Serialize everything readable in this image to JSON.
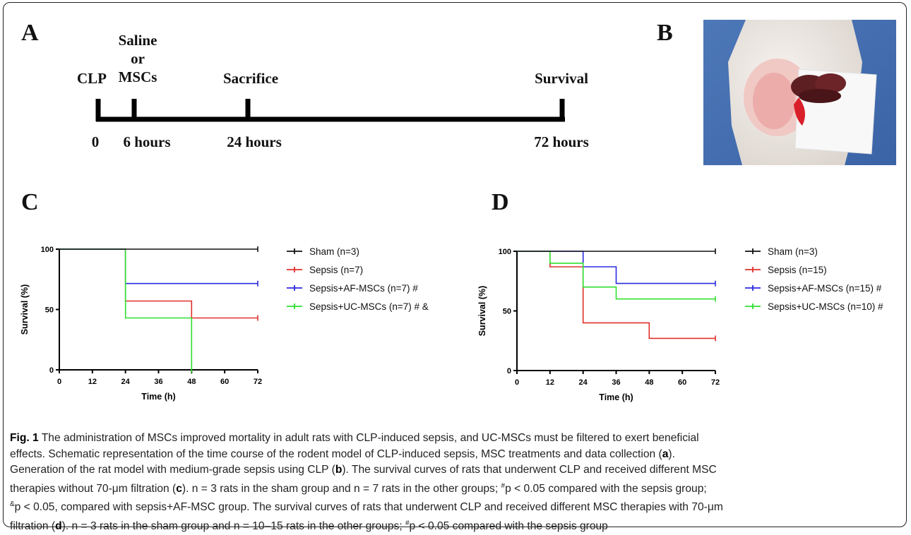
{
  "panelA": {
    "letter": "A",
    "events": [
      {
        "id": "clp",
        "label": "CLP",
        "tick": "0"
      },
      {
        "id": "treat",
        "label_lines": [
          "Saline",
          "or",
          "MSCs"
        ],
        "tick": "6 hours"
      },
      {
        "id": "sac",
        "label": "Sacrifice",
        "tick": "24 hours"
      },
      {
        "id": "surv",
        "label": "Survival",
        "tick": "72 hours"
      }
    ]
  },
  "panelB": {
    "letter": "B"
  },
  "panelC": {
    "letter": "C"
  },
  "panelD": {
    "letter": "D"
  },
  "chart_data": [
    {
      "type": "line",
      "panel": "C",
      "xlabel": "Time (h)",
      "ylabel": "Survival (%)",
      "xlim": [
        0,
        72
      ],
      "ylim": [
        0,
        100
      ],
      "xticks": [
        "0",
        "12",
        "24",
        "36",
        "48",
        "60",
        "72"
      ],
      "yticks": [
        "0",
        "50",
        "100"
      ],
      "legend_position": "right",
      "series": [
        {
          "name": "Sham (n=3)",
          "color": "#111111",
          "points": [
            [
              0,
              100
            ],
            [
              72,
              100
            ]
          ]
        },
        {
          "name": "Sepsis (n=7)",
          "color": "#e0302a",
          "points": [
            [
              0,
              100
            ],
            [
              24,
              100
            ],
            [
              24,
              57
            ],
            [
              48,
              57
            ],
            [
              48,
              43
            ],
            [
              72,
              43
            ]
          ]
        },
        {
          "name": "Sepsis+AF-MSCs (n=7)  #",
          "color": "#2a2ae0",
          "points": [
            [
              0,
              100
            ],
            [
              24,
              100
            ],
            [
              24,
              71.5
            ],
            [
              72,
              71.5
            ]
          ]
        },
        {
          "name": "Sepsis+UC-MSCs (n=7)  # &",
          "color": "#2ee02e",
          "points": [
            [
              0,
              100
            ],
            [
              24,
              100
            ],
            [
              24,
              43
            ],
            [
              48,
              43
            ],
            [
              48,
              0
            ]
          ]
        }
      ]
    },
    {
      "type": "line",
      "panel": "D",
      "xlabel": "Time (h)",
      "ylabel": "Survival (%)",
      "xlim": [
        0,
        72
      ],
      "ylim": [
        0,
        100
      ],
      "xticks": [
        "0",
        "12",
        "24",
        "36",
        "48",
        "60",
        "72"
      ],
      "yticks": [
        "0",
        "50",
        "100"
      ],
      "legend_position": "right",
      "series": [
        {
          "name": "Sham (n=3)",
          "color": "#111111",
          "points": [
            [
              0,
              100
            ],
            [
              72,
              100
            ]
          ]
        },
        {
          "name": "Sepsis (n=15)",
          "color": "#e0302a",
          "points": [
            [
              0,
              100
            ],
            [
              12,
              100
            ],
            [
              12,
              87
            ],
            [
              24,
              87
            ],
            [
              24,
              40
            ],
            [
              48,
              40
            ],
            [
              48,
              27
            ],
            [
              72,
              27
            ]
          ]
        },
        {
          "name": "Sepsis+AF-MSCs (n=15) #",
          "color": "#2a2ae0",
          "points": [
            [
              0,
              100
            ],
            [
              24,
              100
            ],
            [
              24,
              87
            ],
            [
              36,
              87
            ],
            [
              36,
              73
            ],
            [
              72,
              73
            ]
          ]
        },
        {
          "name": "Sepsis+UC-MSCs (n=10) #",
          "color": "#2ee02e",
          "points": [
            [
              0,
              100
            ],
            [
              12,
              100
            ],
            [
              12,
              90
            ],
            [
              24,
              90
            ],
            [
              24,
              70
            ],
            [
              36,
              70
            ],
            [
              36,
              60
            ],
            [
              72,
              60
            ]
          ]
        }
      ]
    }
  ],
  "caption": {
    "fig_label": "Fig. 1",
    "line1": " The administration of MSCs improved mortality in adult rats with CLP-induced sepsis, and UC-MSCs must be filtered to exert beneficial",
    "line2a": "effects. Schematic representation of the time course of the rodent model of CLP-induced sepsis, MSC treatments and data collection (",
    "line2b": "a",
    "line2c": ").",
    "line3a": "Generation of the rat model with medium-grade sepsis using CLP (",
    "line3b": "b",
    "line3c": "). The survival curves of rats that underwent CLP and received different MSC",
    "line4a": "therapies without 70-μm filtration (",
    "line4b": "c",
    "line4c": "). ",
    "line4d": "n = 3 rats in the sham group and n = 7 rats in the other groups; ",
    "line4e": "#",
    "line4f": "p < 0.05 compared with the sepsis group;",
    "line5a": "&",
    "line5b": "p < 0.05, compared with sepsis+AF-MSC group. The survival curves of rats that underwent CLP and received different MSC therapies with 70-μm",
    "line6a": "filtration (",
    "line6b": "d",
    "line6c": "). ",
    "line6d": "n = 3 rats in the sham group and n = 10–15 rats in the other groups; ",
    "line6e": "#",
    "line6f": "p < 0.05 compared with the sepsis group"
  }
}
